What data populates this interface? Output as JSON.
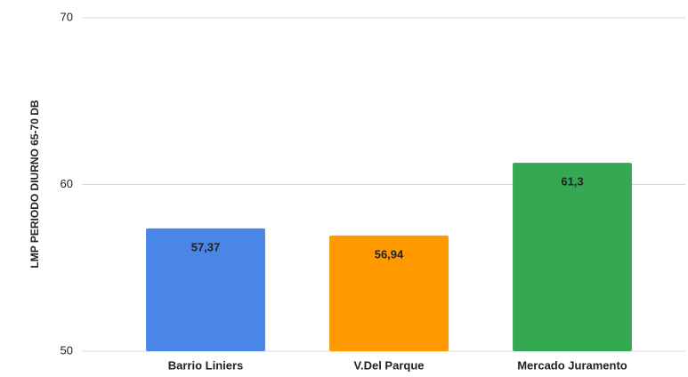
{
  "chart_data": {
    "type": "bar",
    "y_label": "LMP PERIODO DIURNO 65-70 DB",
    "categories": [
      "Barrio Liniers",
      "V.Del Parque",
      "Mercado Juramento"
    ],
    "values": [
      57.37,
      56.94,
      61.3
    ],
    "value_labels": [
      "57,37",
      "56,94",
      "61,3"
    ],
    "colors": [
      "#4a86e8",
      "#ff9900",
      "#34a853"
    ],
    "ylim": [
      50,
      70
    ],
    "yticks": [
      50,
      60,
      70
    ],
    "grid": true
  }
}
